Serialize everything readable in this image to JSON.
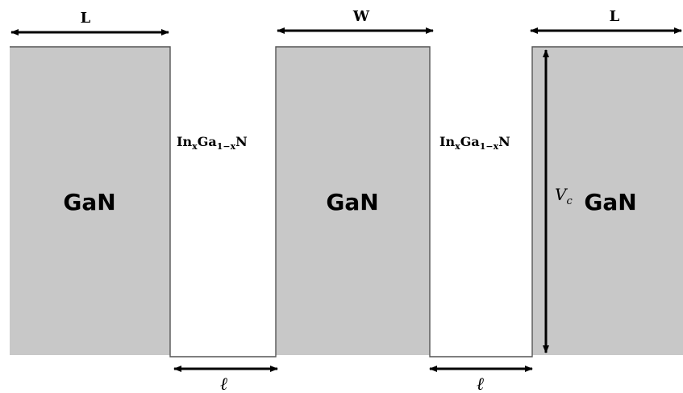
{
  "diagram": {
    "barrier_label": "GaN",
    "well_label": {
      "base1": "In",
      "sub1": "x",
      "base2": "Ga",
      "sub2": "1−x",
      "base3": "N"
    },
    "barrier_width_label_left": "L",
    "barrier_width_label_middle": "W",
    "barrier_width_label_right": "L",
    "well_width_label_1": "ℓ",
    "well_width_label_2": "ℓ",
    "height_label": {
      "symbol": "V",
      "subscript": "c"
    },
    "colors": {
      "barrier_fill": "#c8c8c8",
      "line": "#555555",
      "arrow": "#000000"
    }
  }
}
